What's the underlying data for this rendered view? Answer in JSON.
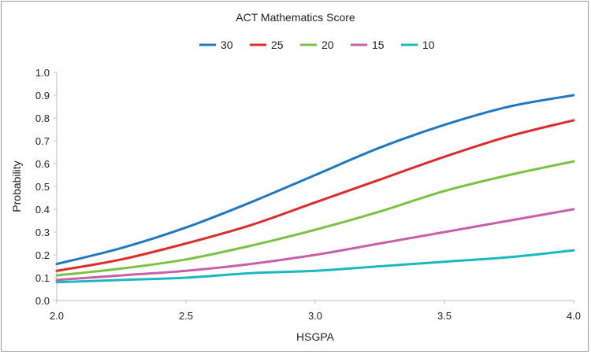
{
  "chart_data": {
    "type": "line",
    "legend_title": "ACT Mathematics Score",
    "legend_position": "top",
    "xlabel": "HSGPA",
    "ylabel": "Probability",
    "xlim": [
      2.0,
      4.0
    ],
    "ylim": [
      0.0,
      1.0
    ],
    "x_ticks": [
      "2.0",
      "2.5",
      "3.0",
      "3.5",
      "4.0"
    ],
    "y_ticks": [
      "0.0",
      "0.1",
      "0.2",
      "0.3",
      "0.4",
      "0.5",
      "0.6",
      "0.7",
      "0.8",
      "0.9",
      "1.0"
    ],
    "grid": false,
    "x": [
      2.0,
      2.25,
      2.5,
      2.75,
      3.0,
      3.25,
      3.5,
      3.75,
      4.0
    ],
    "series": [
      {
        "name": "30",
        "color": "#1f78c1",
        "values": [
          0.16,
          0.23,
          0.32,
          0.43,
          0.55,
          0.67,
          0.77,
          0.85,
          0.9
        ]
      },
      {
        "name": "25",
        "color": "#e02b2b",
        "values": [
          0.13,
          0.18,
          0.25,
          0.33,
          0.43,
          0.53,
          0.63,
          0.72,
          0.79
        ]
      },
      {
        "name": "20",
        "color": "#7cc242",
        "values": [
          0.11,
          0.14,
          0.18,
          0.24,
          0.31,
          0.39,
          0.48,
          0.55,
          0.61
        ]
      },
      {
        "name": "15",
        "color": "#c760a8",
        "values": [
          0.09,
          0.11,
          0.13,
          0.16,
          0.2,
          0.25,
          0.3,
          0.35,
          0.4
        ]
      },
      {
        "name": "10",
        "color": "#1ab8c0",
        "values": [
          0.08,
          0.09,
          0.1,
          0.12,
          0.13,
          0.15,
          0.17,
          0.19,
          0.22
        ]
      }
    ]
  }
}
